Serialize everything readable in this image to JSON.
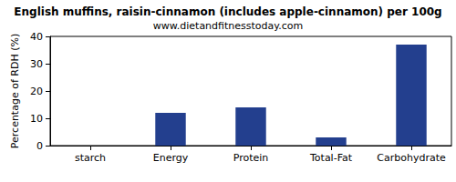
{
  "chart_data": {
    "type": "bar",
    "title": "English muffins, raisin-cinnamon (includes apple-cinnamon) per 100g",
    "subtitle": "www.dietandfitnesstoday.com",
    "y_label": "Percentage of RDH (%)",
    "categories": [
      "starch",
      "Energy",
      "Protein",
      "Total-Fat",
      "Carbohydrate"
    ],
    "values": [
      0,
      12,
      14,
      3,
      37
    ],
    "color": "#233f8e",
    "ylim": [
      0,
      40
    ],
    "yticks": [
      0,
      10,
      20,
      30,
      40
    ],
    "grid": false
  }
}
